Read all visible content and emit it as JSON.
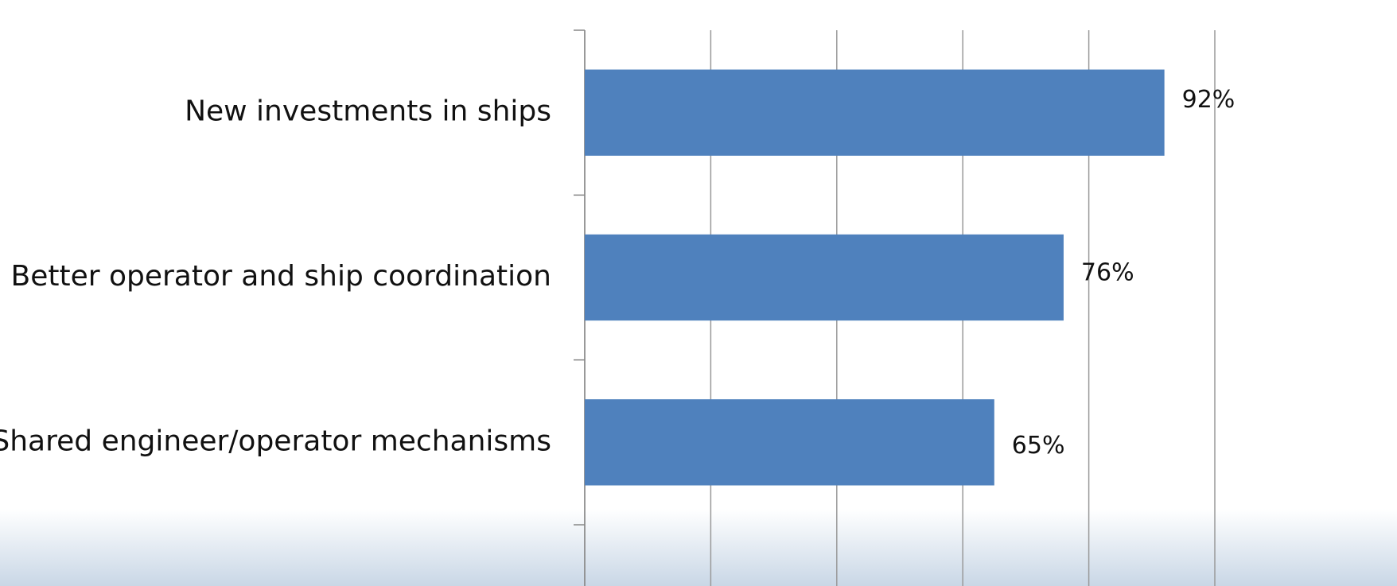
{
  "chart_data": {
    "type": "bar",
    "orientation": "horizontal",
    "categories": [
      "New investments in ships",
      "Better operator and ship coordination",
      "Shared engineer/operator mechanisms"
    ],
    "values": [
      92,
      76,
      65
    ],
    "value_labels": [
      "92%",
      "76%",
      "65%"
    ],
    "color": "#4f81bd",
    "xlim": [
      0,
      100
    ],
    "xticks": [
      0,
      20,
      40,
      60,
      80,
      100
    ],
    "grid": true
  }
}
